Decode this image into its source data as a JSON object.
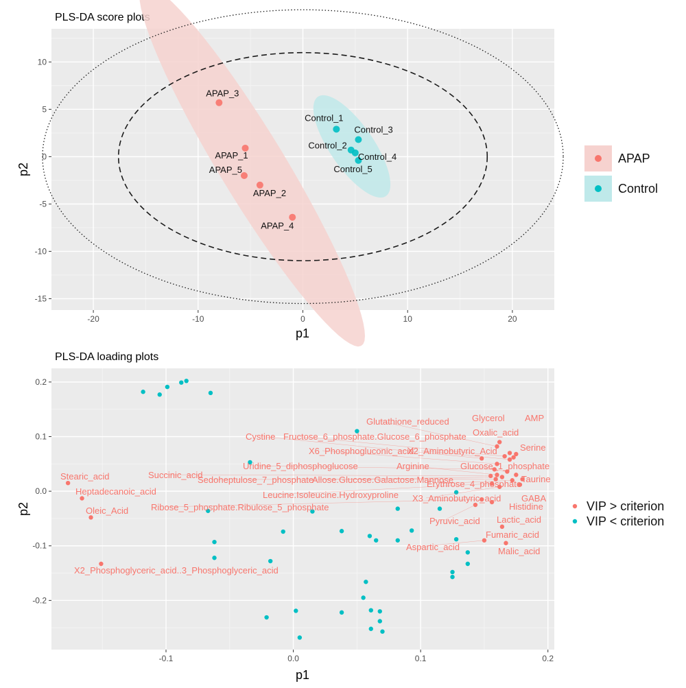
{
  "chart_data": [
    {
      "type": "scatter",
      "title": "PLS-DA score plots",
      "xlabel": "p1",
      "ylabel": "p2",
      "xlim": [
        -24,
        24
      ],
      "ylim": [
        -16.2,
        13.5
      ],
      "xticks": [
        "-20",
        "-10",
        "0",
        "10",
        "20"
      ],
      "xtick_values": [
        -20,
        -10,
        0,
        10,
        20
      ],
      "yticks": [
        "10",
        "5",
        "0",
        "-5",
        "-10",
        "-15"
      ],
      "ytick_values": [
        10,
        5,
        0,
        -5,
        -10,
        -15
      ],
      "grid": true,
      "legend_position": "right",
      "groups": [
        {
          "name": "APAP",
          "color": "#F8766D",
          "fill": "#F6D2CF"
        },
        {
          "name": "Control",
          "color": "#00BFC4",
          "fill": "#BFE9EA"
        }
      ],
      "points": [
        {
          "label": "APAP_3",
          "group": "APAP",
          "x": -8.0,
          "y": 5.7
        },
        {
          "label": "APAP_1",
          "group": "APAP",
          "x": -5.5,
          "y": 0.9
        },
        {
          "label": "APAP_5",
          "group": "APAP",
          "x": -5.6,
          "y": -2.0
        },
        {
          "label": "APAP_2",
          "group": "APAP",
          "x": -4.1,
          "y": -3.0
        },
        {
          "label": "APAP_4",
          "group": "APAP",
          "x": -1.0,
          "y": -6.4
        },
        {
          "label": "Control_1",
          "group": "Control",
          "x": 3.2,
          "y": 2.9
        },
        {
          "label": "Control_3",
          "group": "Control",
          "x": 5.3,
          "y": 1.8
        },
        {
          "label": "Control_2",
          "group": "Control",
          "x": 4.6,
          "y": 0.7
        },
        {
          "label": "Control_4",
          "group": "Control",
          "x": 5.0,
          "y": 0.4
        },
        {
          "label": "Control_5",
          "group": "Control",
          "x": 5.3,
          "y": -0.4
        }
      ]
    },
    {
      "type": "scatter",
      "title": "PLS-DA loading plots",
      "xlabel": "p1",
      "ylabel": "p2",
      "xlim": [
        -0.19,
        0.205
      ],
      "ylim": [
        -0.29,
        0.225
      ],
      "xticks": [
        "-0.1",
        "0.0",
        "0.1",
        "0.2"
      ],
      "xtick_values": [
        -0.1,
        0.0,
        0.1,
        0.2
      ],
      "yticks": [
        "0.2",
        "0.1",
        "0.0",
        "-0.1",
        "-0.2"
      ],
      "ytick_values": [
        0.2,
        0.1,
        0.0,
        -0.1,
        -0.2
      ],
      "grid": true,
      "legend_position": "right",
      "groups": [
        {
          "name": "VIP > criterion",
          "color": "#F8766D"
        },
        {
          "name": "VIP < criterion",
          "color": "#00BFC4"
        }
      ],
      "high_vip": [
        {
          "label": "Stearic_acid",
          "x": -0.177,
          "y": 0.015
        },
        {
          "label": "Heptadecanoic_acid",
          "x": -0.166,
          "y": -0.013
        },
        {
          "label": "Oleic_Acid",
          "x": -0.159,
          "y": -0.048
        },
        {
          "label": "X2_Phosphoglyceric_acid..3_Phosphoglyceric_acid",
          "x": -0.151,
          "y": -0.133
        },
        {
          "label": "Glycerol",
          "x": 0.162,
          "y": 0.09
        },
        {
          "label": "AMP",
          "x": 0.17,
          "y": 0.07
        },
        {
          "label": "Glutathione_reduced",
          "x": 0.16,
          "y": 0.082
        },
        {
          "label": "Oxalic_acid",
          "x": 0.173,
          "y": 0.062
        },
        {
          "label": "Cystine",
          "x": 0.148,
          "y": 0.06
        },
        {
          "label": "Fructose_6_phosphate.Glucose_6_phosphate",
          "x": 0.166,
          "y": 0.064
        },
        {
          "label": "Serine",
          "x": 0.175,
          "y": 0.068
        },
        {
          "label": "X6_Phosphogluconic_acid",
          "x": 0.16,
          "y": 0.05
        },
        {
          "label": "X2_Aminobutyric_Acid",
          "x": 0.17,
          "y": 0.058
        },
        {
          "label": "Uridine_5_diphosphoglucose",
          "x": 0.158,
          "y": 0.04
        },
        {
          "label": "Arginine",
          "x": 0.16,
          "y": 0.03
        },
        {
          "label": "Glucose_1_phosphate",
          "x": 0.168,
          "y": 0.036
        },
        {
          "label": "Succinic_acid",
          "x": 0.155,
          "y": 0.028
        },
        {
          "label": "Sedoheptulose_7_phosphate",
          "x": 0.159,
          "y": 0.022
        },
        {
          "label": "Allose.Glucose.Galactose.Mannose",
          "x": 0.164,
          "y": 0.026
        },
        {
          "label": "Taurine",
          "x": 0.175,
          "y": 0.03
        },
        {
          "label": "Erythrose_4_phosphate",
          "x": 0.172,
          "y": 0.02
        },
        {
          "label": "Leucine.Isoleucine.Hydroxyproline",
          "x": 0.156,
          "y": 0.014
        },
        {
          "label": "X3_Aminobutyric_acid",
          "x": 0.162,
          "y": 0.008
        },
        {
          "label": "GABA",
          "x": 0.178,
          "y": 0.012
        },
        {
          "label": "Histidine",
          "x": 0.18,
          "y": 0.022
        },
        {
          "label": "Ribose_5_phosphate.Ribulose_5_phosphate",
          "x": 0.148,
          "y": -0.015
        },
        {
          "label": "Lactic_acid",
          "x": 0.156,
          "y": -0.02
        },
        {
          "label": "Pyruvic_acid",
          "x": 0.143,
          "y": -0.025
        },
        {
          "label": "Fumaric_acid",
          "x": 0.164,
          "y": -0.065
        },
        {
          "label": "Aspartic_acid",
          "x": 0.15,
          "y": -0.09
        },
        {
          "label": "Malic_acid",
          "x": 0.167,
          "y": -0.095
        }
      ],
      "low_vip": [
        {
          "x": -0.118,
          "y": 0.182
        },
        {
          "x": -0.105,
          "y": 0.177
        },
        {
          "x": -0.099,
          "y": 0.191
        },
        {
          "x": -0.088,
          "y": 0.199
        },
        {
          "x": -0.084,
          "y": 0.202
        },
        {
          "x": -0.065,
          "y": 0.18
        },
        {
          "x": -0.034,
          "y": 0.053
        },
        {
          "x": 0.05,
          "y": 0.11
        },
        {
          "x": -0.067,
          "y": -0.036
        },
        {
          "x": 0.015,
          "y": -0.037
        },
        {
          "x": -0.062,
          "y": -0.093
        },
        {
          "x": -0.062,
          "y": -0.122
        },
        {
          "x": -0.018,
          "y": -0.128
        },
        {
          "x": -0.008,
          "y": -0.074
        },
        {
          "x": 0.038,
          "y": -0.073
        },
        {
          "x": 0.06,
          "y": -0.082
        },
        {
          "x": 0.065,
          "y": -0.09
        },
        {
          "x": 0.082,
          "y": -0.032
        },
        {
          "x": 0.082,
          "y": -0.09
        },
        {
          "x": 0.093,
          "y": -0.072
        },
        {
          "x": 0.115,
          "y": -0.032
        },
        {
          "x": 0.128,
          "y": -0.002
        },
        {
          "x": 0.128,
          "y": -0.088
        },
        {
          "x": 0.137,
          "y": -0.112
        },
        {
          "x": 0.137,
          "y": -0.133
        },
        {
          "x": 0.125,
          "y": -0.148
        },
        {
          "x": 0.125,
          "y": -0.157
        },
        {
          "x": 0.057,
          "y": -0.166
        },
        {
          "x": 0.055,
          "y": -0.195
        },
        {
          "x": 0.061,
          "y": -0.218
        },
        {
          "x": 0.068,
          "y": -0.22
        },
        {
          "x": 0.068,
          "y": -0.238
        },
        {
          "x": 0.061,
          "y": -0.252
        },
        {
          "x": 0.07,
          "y": -0.257
        },
        {
          "x": 0.038,
          "y": -0.222
        },
        {
          "x": 0.002,
          "y": -0.219
        },
        {
          "x": -0.021,
          "y": -0.231
        },
        {
          "x": 0.005,
          "y": -0.268
        }
      ]
    }
  ]
}
